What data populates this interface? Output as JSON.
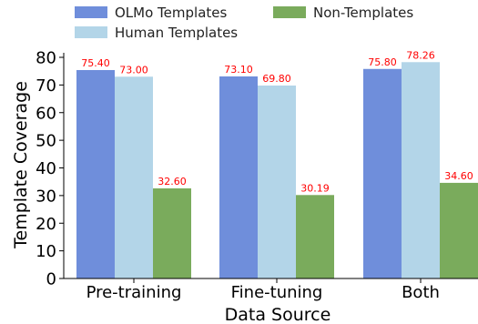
{
  "chart_data": {
    "type": "bar",
    "title": "",
    "xlabel": "Data Source",
    "ylabel": "Template Coverage",
    "ylim": [
      0,
      80
    ],
    "yticks": [
      0,
      10,
      20,
      30,
      40,
      50,
      60,
      70,
      80
    ],
    "categories": [
      "Pre-training",
      "Fine-tuning",
      "Both"
    ],
    "series": [
      {
        "name": "OLMo Templates",
        "color": "#6f8edb",
        "values": [
          75.4,
          73.1,
          75.8
        ],
        "labels": [
          "75.40",
          "73.10",
          "75.80"
        ]
      },
      {
        "name": "Human Templates",
        "color": "#b3d5e8",
        "values": [
          73.0,
          69.8,
          78.26
        ],
        "labels": [
          "73.00",
          "69.80",
          "78.26"
        ]
      },
      {
        "name": "Non-Templates",
        "color": "#7aab5c",
        "values": [
          32.6,
          30.19,
          34.6
        ],
        "labels": [
          "32.60",
          "30.19",
          "34.60"
        ]
      }
    ],
    "data_label_color": "#ff0000",
    "legend_position": "top",
    "grid": false
  }
}
